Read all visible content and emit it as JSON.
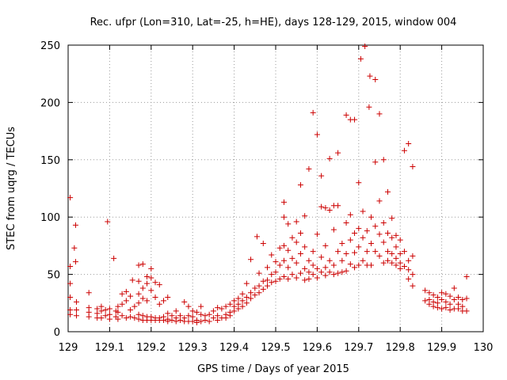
{
  "chart_data": {
    "type": "scatter",
    "title": "Rec. ufpr (Lon=310, Lat=-25, h=HE), days 128-129, 2015, window 004",
    "xlabel": "GPS time / Days of year 2015",
    "ylabel": "STEC from uqrg / TECUs",
    "xlim": [
      129,
      130
    ],
    "ylim": [
      0,
      250
    ],
    "xticks": [
      129,
      129.1,
      129.2,
      129.3,
      129.4,
      129.5,
      129.6,
      129.7,
      129.8,
      129.9,
      130
    ],
    "xtick_labels": [
      "129",
      "129.1",
      "129.2",
      "129.3",
      "129.4",
      "129.5",
      "129.6",
      "129.7",
      "129.8",
      "129.9",
      "130"
    ],
    "yticks": [
      0,
      50,
      100,
      150,
      200,
      250
    ],
    "ytick_labels": [
      "0",
      "50",
      "100",
      "150",
      "200",
      "250"
    ],
    "grid": true,
    "marker": "+",
    "color": "#cc0000",
    "series": [
      {
        "points": [
          [
            129.005,
            117
          ],
          [
            129.005,
            57
          ],
          [
            129.005,
            42
          ],
          [
            129.005,
            30
          ],
          [
            129.005,
            19
          ],
          [
            129.005,
            15
          ],
          [
            129.015,
            73
          ],
          [
            129.018,
            93
          ],
          [
            129.018,
            61
          ],
          [
            129.02,
            26
          ],
          [
            129.02,
            19
          ],
          [
            129.02,
            14
          ],
          [
            129.05,
            34
          ],
          [
            129.05,
            21
          ],
          [
            129.05,
            17
          ],
          [
            129.05,
            13
          ],
          [
            129.07,
            20
          ],
          [
            129.07,
            16
          ],
          [
            129.07,
            12
          ],
          [
            129.08,
            22
          ],
          [
            129.08,
            18
          ],
          [
            129.08,
            12
          ],
          [
            129.09,
            19
          ],
          [
            129.09,
            14
          ],
          [
            129.095,
            96
          ],
          [
            129.1,
            20
          ],
          [
            129.1,
            15
          ],
          [
            129.1,
            11
          ],
          [
            129.11,
            64
          ],
          [
            129.115,
            18
          ],
          [
            129.115,
            13
          ],
          [
            129.12,
            22
          ],
          [
            129.12,
            17
          ],
          [
            129.12,
            11
          ],
          [
            129.13,
            33
          ],
          [
            129.13,
            24
          ],
          [
            129.13,
            14
          ],
          [
            129.14,
            35
          ],
          [
            129.14,
            27
          ],
          [
            129.14,
            12
          ],
          [
            129.15,
            31
          ],
          [
            129.15,
            19
          ],
          [
            129.15,
            13
          ],
          [
            129.155,
            45
          ],
          [
            129.16,
            22
          ],
          [
            129.16,
            12
          ],
          [
            129.17,
            58
          ],
          [
            129.17,
            44
          ],
          [
            129.17,
            33
          ],
          [
            129.17,
            25
          ],
          [
            129.17,
            15
          ],
          [
            129.17,
            11
          ],
          [
            129.18,
            59
          ],
          [
            129.18,
            38
          ],
          [
            129.18,
            29
          ],
          [
            129.18,
            14
          ],
          [
            129.18,
            10
          ],
          [
            129.19,
            48
          ],
          [
            129.19,
            42
          ],
          [
            129.19,
            27
          ],
          [
            129.19,
            13
          ],
          [
            129.19,
            10
          ],
          [
            129.2,
            55
          ],
          [
            129.2,
            47
          ],
          [
            129.2,
            36
          ],
          [
            129.2,
            13
          ],
          [
            129.2,
            10
          ],
          [
            129.21,
            43
          ],
          [
            129.21,
            30
          ],
          [
            129.21,
            12
          ],
          [
            129.21,
            10
          ],
          [
            129.22,
            41
          ],
          [
            129.22,
            24
          ],
          [
            129.22,
            12
          ],
          [
            129.22,
            10
          ],
          [
            129.23,
            27
          ],
          [
            129.23,
            13
          ],
          [
            129.23,
            10
          ],
          [
            129.24,
            30
          ],
          [
            129.24,
            16
          ],
          [
            129.24,
            11
          ],
          [
            129.24,
            9
          ],
          [
            129.25,
            14
          ],
          [
            129.25,
            10
          ],
          [
            129.26,
            18
          ],
          [
            129.26,
            12
          ],
          [
            129.26,
            9
          ],
          [
            129.27,
            14
          ],
          [
            129.27,
            10
          ],
          [
            129.28,
            26
          ],
          [
            129.28,
            12
          ],
          [
            129.28,
            9
          ],
          [
            129.29,
            22
          ],
          [
            129.29,
            14
          ],
          [
            129.29,
            9
          ],
          [
            129.3,
            18
          ],
          [
            129.3,
            13
          ],
          [
            129.3,
            9
          ],
          [
            129.31,
            17
          ],
          [
            129.31,
            10
          ],
          [
            129.31,
            8
          ],
          [
            129.32,
            22
          ],
          [
            129.32,
            15
          ],
          [
            129.32,
            9
          ],
          [
            129.33,
            14
          ],
          [
            129.33,
            10
          ],
          [
            129.34,
            15
          ],
          [
            129.34,
            9
          ],
          [
            129.35,
            18
          ],
          [
            129.35,
            12
          ],
          [
            129.36,
            21
          ],
          [
            129.36,
            14
          ],
          [
            129.36,
            10
          ],
          [
            129.37,
            20
          ],
          [
            129.37,
            12
          ],
          [
            129.38,
            22
          ],
          [
            129.38,
            15
          ],
          [
            129.38,
            12
          ],
          [
            129.39,
            24
          ],
          [
            129.39,
            17
          ],
          [
            129.39,
            14
          ],
          [
            129.4,
            27
          ],
          [
            129.4,
            22
          ],
          [
            129.4,
            18
          ],
          [
            129.41,
            29
          ],
          [
            129.41,
            24
          ],
          [
            129.41,
            20
          ],
          [
            129.42,
            33
          ],
          [
            129.42,
            27
          ],
          [
            129.42,
            22
          ],
          [
            129.43,
            42
          ],
          [
            129.43,
            30
          ],
          [
            129.43,
            25
          ],
          [
            129.44,
            63
          ],
          [
            129.44,
            34
          ],
          [
            129.44,
            29
          ],
          [
            129.45,
            38
          ],
          [
            129.45,
            32
          ],
          [
            129.455,
            83
          ],
          [
            129.46,
            51
          ],
          [
            129.46,
            40
          ],
          [
            129.46,
            34
          ],
          [
            129.47,
            77
          ],
          [
            129.47,
            44
          ],
          [
            129.47,
            37
          ],
          [
            129.48,
            56
          ],
          [
            129.48,
            45
          ],
          [
            129.48,
            40
          ],
          [
            129.49,
            67
          ],
          [
            129.49,
            50
          ],
          [
            129.49,
            43
          ],
          [
            129.5,
            61
          ],
          [
            129.5,
            52
          ],
          [
            129.5,
            44
          ],
          [
            129.51,
            73
          ],
          [
            129.51,
            58
          ],
          [
            129.51,
            46
          ],
          [
            129.52,
            113
          ],
          [
            129.52,
            100
          ],
          [
            129.52,
            75
          ],
          [
            129.52,
            62
          ],
          [
            129.52,
            48
          ],
          [
            129.53,
            94
          ],
          [
            129.53,
            71
          ],
          [
            129.53,
            56
          ],
          [
            129.53,
            46
          ],
          [
            129.54,
            82
          ],
          [
            129.54,
            64
          ],
          [
            129.54,
            50
          ],
          [
            129.55,
            96
          ],
          [
            129.55,
            78
          ],
          [
            129.55,
            60
          ],
          [
            129.55,
            47
          ],
          [
            129.56,
            128
          ],
          [
            129.56,
            86
          ],
          [
            129.56,
            68
          ],
          [
            129.56,
            51
          ],
          [
            129.57,
            101
          ],
          [
            129.57,
            74
          ],
          [
            129.57,
            55
          ],
          [
            129.57,
            45
          ],
          [
            129.58,
            142
          ],
          [
            129.58,
            62
          ],
          [
            129.58,
            52
          ],
          [
            129.58,
            46
          ],
          [
            129.59,
            191
          ],
          [
            129.59,
            70
          ],
          [
            129.59,
            58
          ],
          [
            129.59,
            50
          ],
          [
            129.6,
            172
          ],
          [
            129.6,
            85
          ],
          [
            129.6,
            55
          ],
          [
            129.6,
            47
          ],
          [
            129.61,
            136
          ],
          [
            129.61,
            109
          ],
          [
            129.61,
            65
          ],
          [
            129.61,
            52
          ],
          [
            129.62,
            108
          ],
          [
            129.62,
            75
          ],
          [
            129.62,
            56
          ],
          [
            129.62,
            49
          ],
          [
            129.63,
            151
          ],
          [
            129.63,
            106
          ],
          [
            129.63,
            62
          ],
          [
            129.63,
            52
          ],
          [
            129.64,
            110
          ],
          [
            129.64,
            89
          ],
          [
            129.64,
            58
          ],
          [
            129.64,
            50
          ],
          [
            129.65,
            156
          ],
          [
            129.65,
            110
          ],
          [
            129.65,
            70
          ],
          [
            129.65,
            51
          ],
          [
            129.66,
            77
          ],
          [
            129.66,
            62
          ],
          [
            129.66,
            52
          ],
          [
            129.67,
            189
          ],
          [
            129.67,
            95
          ],
          [
            129.67,
            68
          ],
          [
            129.67,
            53
          ],
          [
            129.68,
            185
          ],
          [
            129.68,
            102
          ],
          [
            129.68,
            80
          ],
          [
            129.68,
            59
          ],
          [
            129.69,
            185
          ],
          [
            129.69,
            86
          ],
          [
            129.69,
            69
          ],
          [
            129.69,
            56
          ],
          [
            129.7,
            130
          ],
          [
            129.7,
            90
          ],
          [
            129.7,
            74
          ],
          [
            129.7,
            58
          ],
          [
            129.705,
            238
          ],
          [
            129.71,
            105
          ],
          [
            129.71,
            82
          ],
          [
            129.71,
            62
          ],
          [
            129.715,
            249
          ],
          [
            129.72,
            88
          ],
          [
            129.72,
            70
          ],
          [
            129.72,
            58
          ],
          [
            129.725,
            196
          ],
          [
            129.727,
            223
          ],
          [
            129.73,
            100
          ],
          [
            129.73,
            77
          ],
          [
            129.73,
            58
          ],
          [
            129.74,
            220
          ],
          [
            129.74,
            148
          ],
          [
            129.74,
            92
          ],
          [
            129.74,
            70
          ],
          [
            129.75,
            190
          ],
          [
            129.75,
            114
          ],
          [
            129.75,
            85
          ],
          [
            129.75,
            66
          ],
          [
            129.76,
            150
          ],
          [
            129.76,
            95
          ],
          [
            129.76,
            78
          ],
          [
            129.76,
            60
          ],
          [
            129.77,
            122
          ],
          [
            129.77,
            86
          ],
          [
            129.77,
            70
          ],
          [
            129.77,
            62
          ],
          [
            129.78,
            99
          ],
          [
            129.78,
            82
          ],
          [
            129.78,
            68
          ],
          [
            129.78,
            60
          ],
          [
            129.79,
            84
          ],
          [
            129.79,
            74
          ],
          [
            129.79,
            64
          ],
          [
            129.79,
            58
          ],
          [
            129.8,
            80
          ],
          [
            129.8,
            68
          ],
          [
            129.8,
            60
          ],
          [
            129.8,
            55
          ],
          [
            129.81,
            158
          ],
          [
            129.81,
            70
          ],
          [
            129.81,
            57
          ],
          [
            129.82,
            164
          ],
          [
            129.82,
            62
          ],
          [
            129.82,
            54
          ],
          [
            129.82,
            46
          ],
          [
            129.83,
            144
          ],
          [
            129.83,
            66
          ],
          [
            129.83,
            50
          ],
          [
            129.83,
            40
          ],
          [
            129.86,
            36
          ],
          [
            129.86,
            27
          ],
          [
            129.87,
            34
          ],
          [
            129.87,
            28
          ],
          [
            129.87,
            24
          ],
          [
            129.88,
            32
          ],
          [
            129.88,
            26
          ],
          [
            129.88,
            22
          ],
          [
            129.89,
            30
          ],
          [
            129.89,
            25
          ],
          [
            129.89,
            21
          ],
          [
            129.9,
            34
          ],
          [
            129.9,
            28
          ],
          [
            129.9,
            20
          ],
          [
            129.91,
            33
          ],
          [
            129.91,
            26
          ],
          [
            129.91,
            21
          ],
          [
            129.92,
            31
          ],
          [
            129.92,
            24
          ],
          [
            129.92,
            19
          ],
          [
            129.93,
            38
          ],
          [
            129.93,
            28
          ],
          [
            129.93,
            20
          ],
          [
            129.94,
            30
          ],
          [
            129.94,
            24
          ],
          [
            129.94,
            20
          ],
          [
            129.95,
            28
          ],
          [
            129.95,
            22
          ],
          [
            129.95,
            18
          ],
          [
            129.96,
            48
          ],
          [
            129.96,
            29
          ],
          [
            129.96,
            18
          ]
        ]
      }
    ]
  }
}
